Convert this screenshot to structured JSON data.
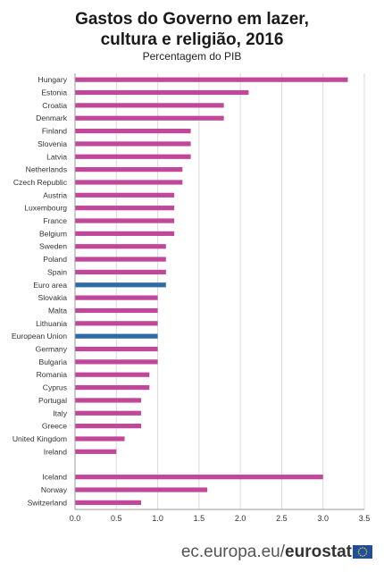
{
  "chart_data": {
    "type": "bar",
    "orientation": "horizontal",
    "title_lines": [
      "Gastos do Governo em lazer,",
      "cultura e religião, 2016"
    ],
    "subtitle": "Percentagem do PIB",
    "xlim": [
      0,
      3.5
    ],
    "xticks": [
      "0.0",
      "0.5",
      "1.0",
      "1.5",
      "2.0",
      "2.5",
      "3.0",
      "3.5"
    ],
    "grid": "vertical",
    "colors": {
      "default": "#c0479a",
      "highlight": "#2e6aa8"
    },
    "bars": [
      {
        "label": "Hungary",
        "value": 3.3,
        "group": 0,
        "highlight": false
      },
      {
        "label": "Estonia",
        "value": 2.1,
        "group": 0,
        "highlight": false
      },
      {
        "label": "Croatia",
        "value": 1.8,
        "group": 0,
        "highlight": false
      },
      {
        "label": "Denmark",
        "value": 1.8,
        "group": 0,
        "highlight": false
      },
      {
        "label": "Finland",
        "value": 1.4,
        "group": 0,
        "highlight": false
      },
      {
        "label": "Slovenia",
        "value": 1.4,
        "group": 0,
        "highlight": false
      },
      {
        "label": "Latvia",
        "value": 1.4,
        "group": 0,
        "highlight": false
      },
      {
        "label": "Netherlands",
        "value": 1.3,
        "group": 0,
        "highlight": false
      },
      {
        "label": "Czech Republic",
        "value": 1.3,
        "group": 0,
        "highlight": false
      },
      {
        "label": "Austria",
        "value": 1.2,
        "group": 0,
        "highlight": false
      },
      {
        "label": "Luxembourg",
        "value": 1.2,
        "group": 0,
        "highlight": false
      },
      {
        "label": "France",
        "value": 1.2,
        "group": 0,
        "highlight": false
      },
      {
        "label": "Belgium",
        "value": 1.2,
        "group": 0,
        "highlight": false
      },
      {
        "label": "Sweden",
        "value": 1.1,
        "group": 0,
        "highlight": false
      },
      {
        "label": "Poland",
        "value": 1.1,
        "group": 0,
        "highlight": false
      },
      {
        "label": "Spain",
        "value": 1.1,
        "group": 0,
        "highlight": false
      },
      {
        "label": "Euro area",
        "value": 1.1,
        "group": 0,
        "highlight": true
      },
      {
        "label": "Slovakia",
        "value": 1.0,
        "group": 0,
        "highlight": false
      },
      {
        "label": "Malta",
        "value": 1.0,
        "group": 0,
        "highlight": false
      },
      {
        "label": "Lithuania",
        "value": 1.0,
        "group": 0,
        "highlight": false
      },
      {
        "label": "European Union",
        "value": 1.0,
        "group": 0,
        "highlight": true
      },
      {
        "label": "Germany",
        "value": 1.0,
        "group": 0,
        "highlight": false
      },
      {
        "label": "Bulgaria",
        "value": 1.0,
        "group": 0,
        "highlight": false
      },
      {
        "label": "Romania",
        "value": 0.9,
        "group": 0,
        "highlight": false
      },
      {
        "label": "Cyprus",
        "value": 0.9,
        "group": 0,
        "highlight": false
      },
      {
        "label": "Portugal",
        "value": 0.8,
        "group": 0,
        "highlight": false
      },
      {
        "label": "Italy",
        "value": 0.8,
        "group": 0,
        "highlight": false
      },
      {
        "label": "Greece",
        "value": 0.8,
        "group": 0,
        "highlight": false
      },
      {
        "label": "United Kingdom",
        "value": 0.6,
        "group": 0,
        "highlight": false
      },
      {
        "label": "Ireland",
        "value": 0.5,
        "group": 0,
        "highlight": false
      },
      {
        "label": "Iceland",
        "value": 3.0,
        "group": 1,
        "highlight": false
      },
      {
        "label": "Norway",
        "value": 1.6,
        "group": 1,
        "highlight": false
      },
      {
        "label": "Switzerland",
        "value": 0.8,
        "group": 1,
        "highlight": false
      }
    ]
  },
  "footer": {
    "domain": "ec.europa.eu/",
    "brand": "eurostat"
  }
}
